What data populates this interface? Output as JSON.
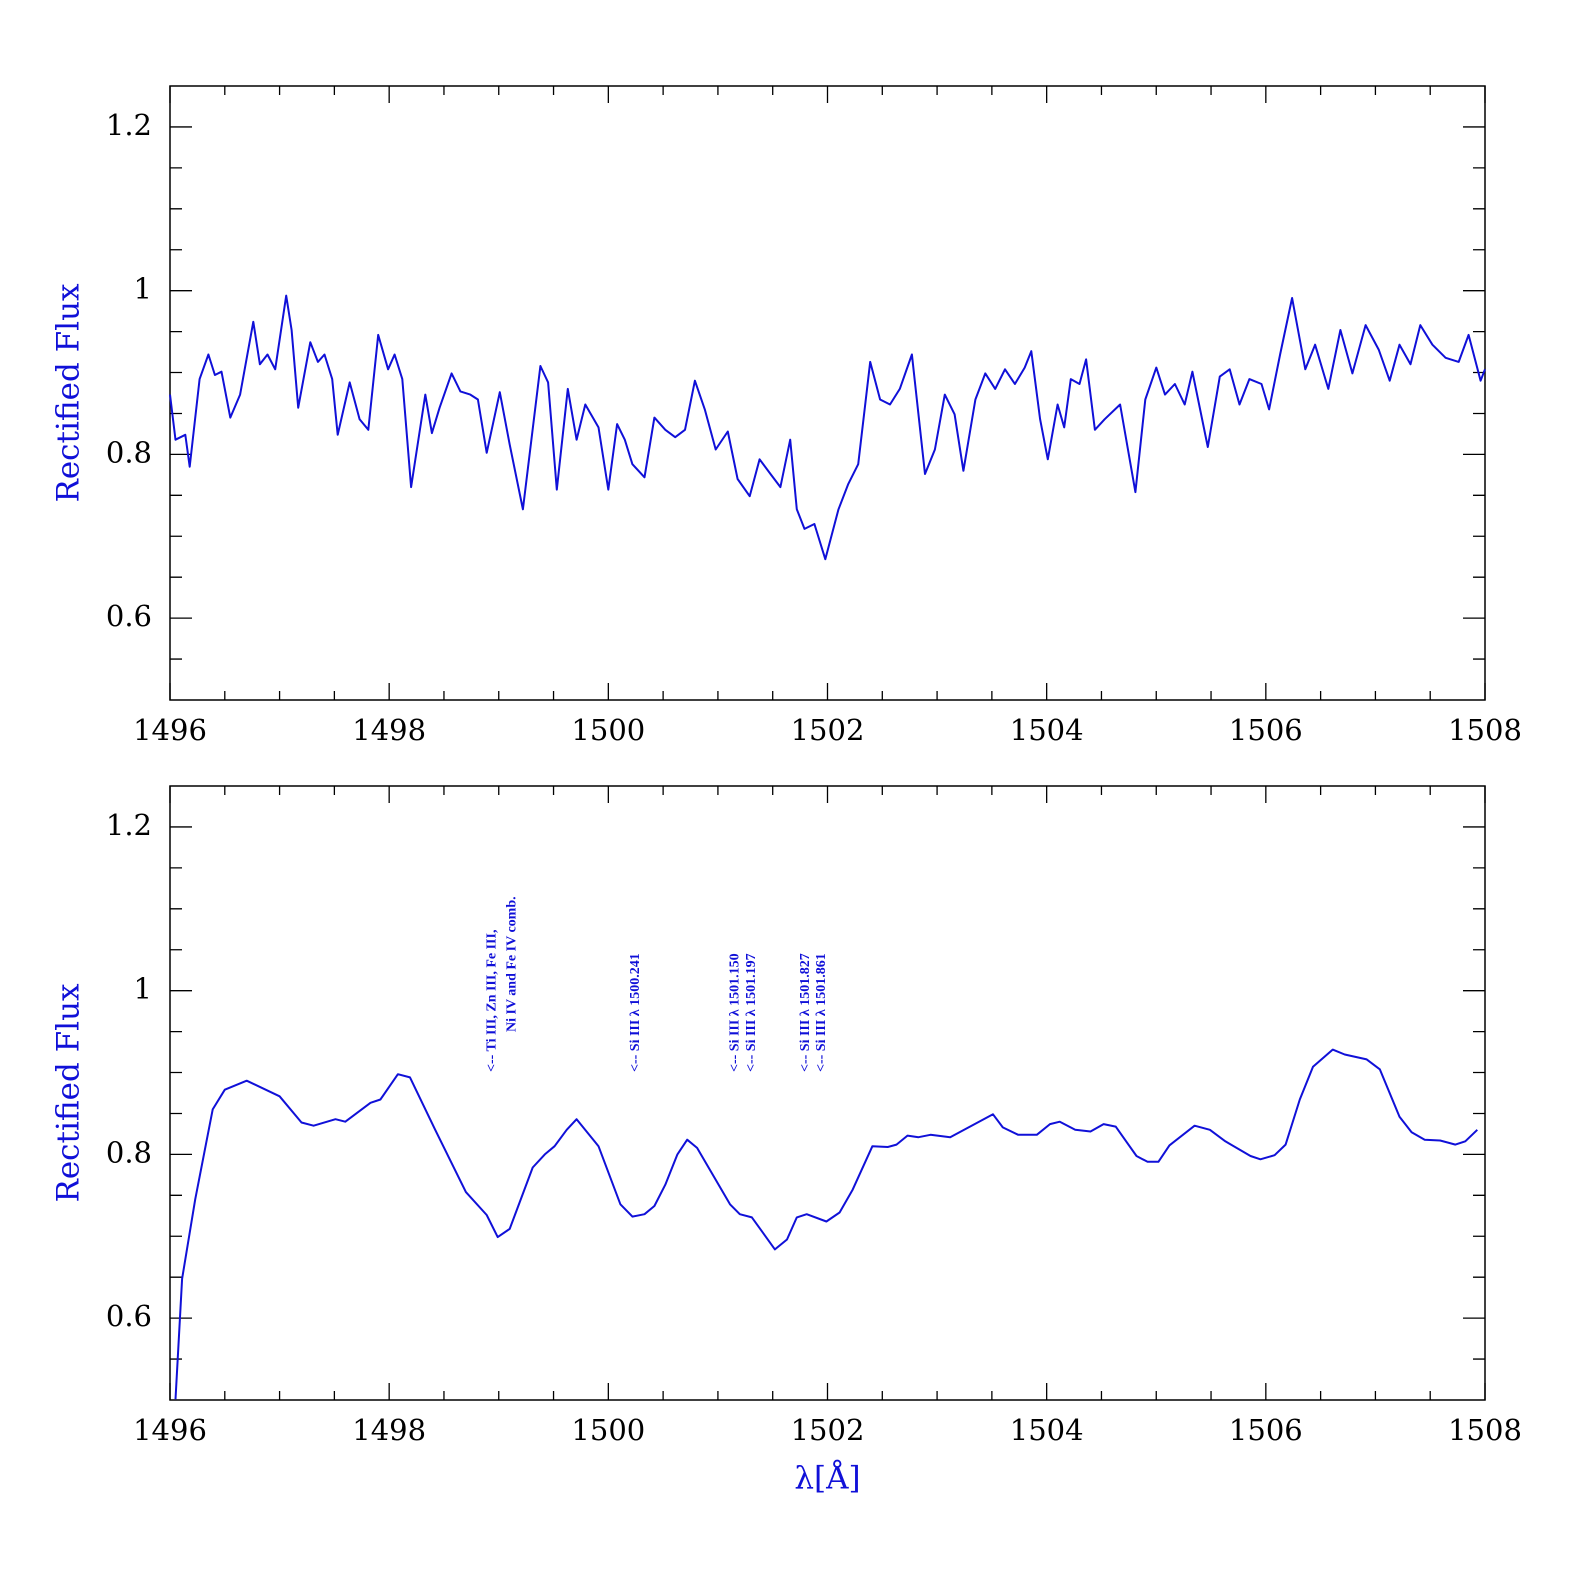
{
  "chart_data": [
    {
      "type": "line",
      "ylabel": "Rectified Flux",
      "xlim": [
        1496,
        1508
      ],
      "ylim": [
        0.5,
        1.25
      ],
      "xticks": [
        1496,
        1498,
        1500,
        1502,
        1504,
        1506,
        1508
      ],
      "xminorticks": [
        1496.5,
        1497,
        1497.5,
        1498.5,
        1499,
        1499.5,
        1500.5,
        1501,
        1501.5,
        1502.5,
        1503,
        1503.5,
        1504.5,
        1505,
        1505.5,
        1506.5,
        1507,
        1507.5
      ],
      "yticks": [
        0.6,
        0.8,
        1,
        1.2
      ],
      "yminorticks": [
        0.55,
        0.65,
        0.7,
        0.75,
        0.85,
        0.9,
        0.95,
        1.05,
        1.1,
        1.15
      ],
      "series": [
        {
          "color": "#1010d8",
          "x": [
            1496.0,
            1496.05,
            1496.14,
            1496.18,
            1496.27,
            1496.35,
            1496.41,
            1496.47,
            1496.55,
            1496.64,
            1496.76,
            1496.82,
            1496.89,
            1496.96,
            1497.06,
            1497.11,
            1497.17,
            1497.28,
            1497.35,
            1497.41,
            1497.48,
            1497.53,
            1497.64,
            1497.73,
            1497.81,
            1497.9,
            1497.99,
            1498.05,
            1498.12,
            1498.2,
            1498.33,
            1498.39,
            1498.46,
            1498.57,
            1498.65,
            1498.74,
            1498.81,
            1498.89,
            1499.01,
            1499.1,
            1499.22,
            1499.38,
            1499.45,
            1499.53,
            1499.63,
            1499.71,
            1499.79,
            1499.91,
            1500.0,
            1500.08,
            1500.15,
            1500.22,
            1500.33,
            1500.42,
            1500.52,
            1500.61,
            1500.7,
            1500.79,
            1500.88,
            1500.98,
            1501.09,
            1501.18,
            1501.29,
            1501.38,
            1501.48,
            1501.57,
            1501.66,
            1501.72,
            1501.79,
            1501.88,
            1501.98,
            1502.1,
            1502.19,
            1502.28,
            1502.39,
            1502.48,
            1502.57,
            1502.66,
            1502.77,
            1502.89,
            1502.98,
            1503.07,
            1503.16,
            1503.24,
            1503.35,
            1503.44,
            1503.53,
            1503.62,
            1503.71,
            1503.8,
            1503.86,
            1503.94,
            1504.01,
            1504.1,
            1504.16,
            1504.22,
            1504.3,
            1504.36,
            1504.44,
            1504.53,
            1504.67,
            1504.81,
            1504.9,
            1505.0,
            1505.08,
            1505.17,
            1505.26,
            1505.33,
            1505.47,
            1505.58,
            1505.67,
            1505.76,
            1505.85,
            1505.96,
            1506.03,
            1506.13,
            1506.24,
            1506.36,
            1506.45,
            1506.57,
            1506.68,
            1506.79,
            1506.91,
            1507.03,
            1507.13,
            1507.22,
            1507.32,
            1507.41,
            1507.52,
            1507.64,
            1507.76,
            1507.85,
            1507.96,
            1508.0
          ],
          "values": [
            0.873,
            0.818,
            0.824,
            0.785,
            0.892,
            0.922,
            0.897,
            0.901,
            0.845,
            0.873,
            0.962,
            0.91,
            0.922,
            0.904,
            0.994,
            0.952,
            0.857,
            0.937,
            0.913,
            0.922,
            0.892,
            0.824,
            0.888,
            0.843,
            0.83,
            0.946,
            0.904,
            0.922,
            0.892,
            0.76,
            0.873,
            0.826,
            0.857,
            0.899,
            0.877,
            0.873,
            0.867,
            0.802,
            0.876,
            0.812,
            0.733,
            0.908,
            0.888,
            0.757,
            0.88,
            0.818,
            0.861,
            0.833,
            0.757,
            0.837,
            0.818,
            0.788,
            0.772,
            0.845,
            0.83,
            0.821,
            0.83,
            0.89,
            0.855,
            0.806,
            0.828,
            0.77,
            0.749,
            0.794,
            0.776,
            0.76,
            0.818,
            0.733,
            0.709,
            0.715,
            0.672,
            0.733,
            0.764,
            0.788,
            0.913,
            0.867,
            0.861,
            0.88,
            0.922,
            0.776,
            0.806,
            0.873,
            0.849,
            0.78,
            0.867,
            0.899,
            0.88,
            0.904,
            0.886,
            0.906,
            0.926,
            0.843,
            0.794,
            0.861,
            0.833,
            0.892,
            0.886,
            0.916,
            0.83,
            0.843,
            0.861,
            0.754,
            0.867,
            0.906,
            0.873,
            0.886,
            0.861,
            0.901,
            0.809,
            0.895,
            0.904,
            0.861,
            0.892,
            0.886,
            0.855,
            0.922,
            0.991,
            0.904,
            0.934,
            0.88,
            0.952,
            0.899,
            0.958,
            0.928,
            0.89,
            0.934,
            0.91,
            0.958,
            0.934,
            0.918,
            0.913,
            0.946,
            0.89,
            0.904
          ]
        }
      ]
    },
    {
      "type": "line",
      "ylabel": "Rectified Flux",
      "xlabel": "λ[Å]",
      "xlim": [
        1496,
        1508
      ],
      "ylim": [
        0.5,
        1.25
      ],
      "xticks": [
        1496,
        1498,
        1500,
        1502,
        1504,
        1506,
        1508
      ],
      "xminorticks": [
        1496.5,
        1497,
        1497.5,
        1498.5,
        1499,
        1499.5,
        1500.5,
        1501,
        1501.5,
        1502.5,
        1503,
        1503.5,
        1504.5,
        1505,
        1505.5,
        1506.5,
        1507,
        1507.5
      ],
      "yticks": [
        0.6,
        0.8,
        1,
        1.2
      ],
      "yminorticks": [
        0.55,
        0.65,
        0.7,
        0.75,
        0.85,
        0.9,
        0.95,
        1.05,
        1.1,
        1.15
      ],
      "annotations": [
        {
          "x": 1498.94,
          "lines": [
            "<-- Ti III, Zn III, Fe III,",
            "Ni IV and Fe IV comb."
          ]
        },
        {
          "x": 1500.25,
          "lines": [
            "<-- Si III λ 1500.241"
          ]
        },
        {
          "x": 1501.16,
          "lines": [
            "<-- Si III λ 1501.150"
          ]
        },
        {
          "x": 1501.31,
          "lines": [
            "<-- Si III λ 1501.197"
          ]
        },
        {
          "x": 1501.8,
          "lines": [
            "<-- Si III λ 1501.827"
          ]
        },
        {
          "x": 1501.95,
          "lines": [
            "<-- Si III λ 1501.861"
          ]
        }
      ],
      "series": [
        {
          "color": "#1010d8",
          "x": [
            1496.05,
            1496.11,
            1496.23,
            1496.39,
            1496.5,
            1496.7,
            1497.0,
            1497.2,
            1497.31,
            1497.51,
            1497.6,
            1497.83,
            1497.92,
            1498.08,
            1498.19,
            1498.42,
            1498.7,
            1498.89,
            1498.99,
            1499.1,
            1499.31,
            1499.42,
            1499.51,
            1499.62,
            1499.71,
            1499.91,
            1500.11,
            1500.22,
            1500.33,
            1500.42,
            1500.52,
            1500.63,
            1500.72,
            1500.81,
            1501.11,
            1501.2,
            1501.31,
            1501.52,
            1501.63,
            1501.72,
            1501.81,
            1501.99,
            1502.11,
            1502.23,
            1502.41,
            1502.55,
            1502.63,
            1502.73,
            1502.83,
            1502.94,
            1503.12,
            1503.51,
            1503.6,
            1503.74,
            1503.91,
            1504.03,
            1504.12,
            1504.26,
            1504.4,
            1504.52,
            1504.63,
            1504.82,
            1504.92,
            1505.02,
            1505.12,
            1505.35,
            1505.49,
            1505.63,
            1505.86,
            1505.95,
            1506.08,
            1506.18,
            1506.31,
            1506.43,
            1506.61,
            1506.72,
            1506.92,
            1507.04,
            1507.22,
            1507.33,
            1507.45,
            1507.59,
            1507.73,
            1507.82,
            1507.93
          ],
          "values": [
            0.501,
            0.648,
            0.745,
            0.855,
            0.879,
            0.89,
            0.871,
            0.839,
            0.835,
            0.843,
            0.84,
            0.863,
            0.867,
            0.898,
            0.894,
            0.83,
            0.754,
            0.726,
            0.699,
            0.709,
            0.784,
            0.8,
            0.81,
            0.83,
            0.843,
            0.81,
            0.739,
            0.724,
            0.727,
            0.737,
            0.763,
            0.8,
            0.818,
            0.808,
            0.739,
            0.727,
            0.723,
            0.684,
            0.696,
            0.723,
            0.727,
            0.718,
            0.729,
            0.757,
            0.81,
            0.809,
            0.812,
            0.823,
            0.821,
            0.824,
            0.821,
            0.849,
            0.833,
            0.824,
            0.824,
            0.837,
            0.84,
            0.83,
            0.828,
            0.837,
            0.834,
            0.798,
            0.791,
            0.791,
            0.811,
            0.835,
            0.83,
            0.816,
            0.798,
            0.794,
            0.799,
            0.812,
            0.867,
            0.907,
            0.928,
            0.922,
            0.916,
            0.904,
            0.846,
            0.827,
            0.818,
            0.817,
            0.812,
            0.816,
            0.83
          ]
        }
      ]
    }
  ]
}
